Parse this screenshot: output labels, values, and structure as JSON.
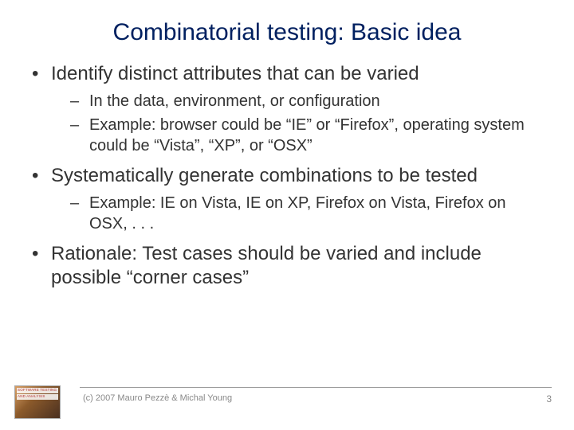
{
  "title": "Combinatorial testing: Basic idea",
  "bullets": [
    {
      "text": "Identify distinct attributes that can be varied",
      "sub": [
        "In the data, environment, or configuration",
        "Example:  browser could be “IE” or “Firefox”, operating system could be “Vista”, “XP”, or “OSX”"
      ]
    },
    {
      "text": "Systematically generate combinations to be tested",
      "sub": [
        "Example: IE on Vista, IE on XP, Firefox on Vista, Firefox on OSX, . . ."
      ]
    },
    {
      "text": "Rationale:  Test cases should be varied and include possible “corner cases”",
      "sub": []
    }
  ],
  "footer": {
    "copyright": "(c) 2007 Mauro Pezzè & Michal Young",
    "page": "3"
  },
  "colors": {
    "title": "#002060",
    "text": "#333333",
    "footer": "#888888",
    "line": "#999999",
    "background": "#ffffff"
  }
}
